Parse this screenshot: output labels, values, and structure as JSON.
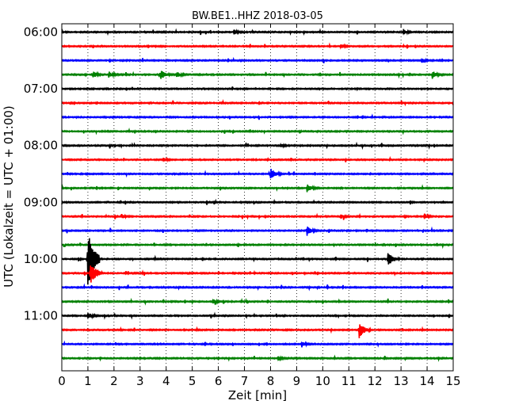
{
  "chart_data": {
    "type": "line",
    "title": "BW.BE1..HHZ 2018-03-05",
    "xlabel": "Zeit  [min]",
    "ylabel": "UTC (Lokalzeit = UTC + 01:00)",
    "xlim": [
      0,
      15
    ],
    "x_ticks": [
      "0",
      "1",
      "2",
      "3",
      "4",
      "5",
      "6",
      "7",
      "8",
      "9",
      "10",
      "11",
      "12",
      "13",
      "14",
      "15"
    ],
    "y_tick_labels": [
      "06:00",
      "07:00",
      "08:00",
      "09:00",
      "10:00",
      "11:00"
    ],
    "trace_interval_minutes": 15,
    "trace_start": "06:00",
    "trace_count": 24,
    "grid": "vertical-dotted",
    "trace_colors": [
      "#000000",
      "#ff0000",
      "#0000ff",
      "#008000"
    ],
    "events": [
      {
        "trace": 0,
        "x": 6.6,
        "amp": 0.35
      },
      {
        "trace": 0,
        "x": 13.1,
        "amp": 0.4
      },
      {
        "trace": 1,
        "x": 10.7,
        "amp": 0.35
      },
      {
        "trace": 2,
        "x": 13.8,
        "amp": 0.35
      },
      {
        "trace": 3,
        "x": 1.2,
        "amp": 0.55
      },
      {
        "trace": 3,
        "x": 1.8,
        "amp": 0.5
      },
      {
        "trace": 3,
        "x": 3.8,
        "amp": 0.8
      },
      {
        "trace": 3,
        "x": 4.4,
        "amp": 0.5
      },
      {
        "trace": 3,
        "x": 14.2,
        "amp": 0.6
      },
      {
        "trace": 8,
        "x": 8.4,
        "amp": 0.3
      },
      {
        "trace": 9,
        "x": 3.9,
        "amp": 0.3
      },
      {
        "trace": 10,
        "x": 8.0,
        "amp": 1.0
      },
      {
        "trace": 11,
        "x": 9.4,
        "amp": 0.75
      },
      {
        "trace": 13,
        "x": 2.3,
        "amp": 0.35
      },
      {
        "trace": 13,
        "x": 10.7,
        "amp": 0.35
      },
      {
        "trace": 13,
        "x": 13.9,
        "amp": 0.4
      },
      {
        "trace": 14,
        "x": 9.4,
        "amp": 0.75
      },
      {
        "trace": 16,
        "x": 1.0,
        "amp": 5.0
      },
      {
        "trace": 16,
        "x": 12.5,
        "amp": 1.3
      },
      {
        "trace": 17,
        "x": 1.1,
        "amp": 1.8
      },
      {
        "trace": 19,
        "x": 5.8,
        "amp": 0.35
      },
      {
        "trace": 20,
        "x": 1.0,
        "amp": 0.55
      },
      {
        "trace": 21,
        "x": 11.4,
        "amp": 1.3
      },
      {
        "trace": 22,
        "x": 9.2,
        "amp": 0.45
      },
      {
        "trace": 23,
        "x": 8.3,
        "amp": 0.3
      }
    ]
  }
}
